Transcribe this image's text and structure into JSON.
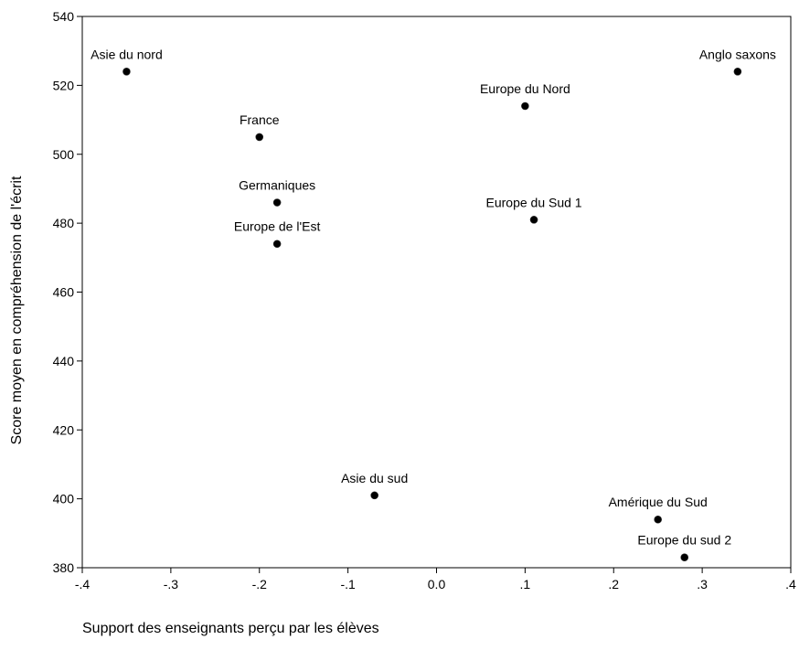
{
  "chart_data": {
    "type": "scatter",
    "title": "",
    "xlabel": "Support des enseignants perçu par les élèves",
    "ylabel": "Score moyen en compréhension de l'écrit",
    "xlim": [
      -0.4,
      0.4
    ],
    "ylim": [
      380,
      540
    ],
    "x_ticks": [
      {
        "value": -0.4,
        "label": "-.4"
      },
      {
        "value": -0.3,
        "label": "-.3"
      },
      {
        "value": -0.2,
        "label": "-.2"
      },
      {
        "value": -0.1,
        "label": "-.1"
      },
      {
        "value": 0.0,
        "label": "0.0"
      },
      {
        "value": 0.1,
        "label": ".1"
      },
      {
        "value": 0.2,
        "label": ".2"
      },
      {
        "value": 0.3,
        "label": ".3"
      },
      {
        "value": 0.4,
        "label": ".4"
      }
    ],
    "y_ticks": [
      {
        "value": 380,
        "label": "380"
      },
      {
        "value": 400,
        "label": "400"
      },
      {
        "value": 420,
        "label": "420"
      },
      {
        "value": 440,
        "label": "440"
      },
      {
        "value": 460,
        "label": "460"
      },
      {
        "value": 480,
        "label": "480"
      },
      {
        "value": 500,
        "label": "500"
      },
      {
        "value": 520,
        "label": "520"
      },
      {
        "value": 540,
        "label": "540"
      }
    ],
    "grid": false,
    "marker_color": "#000000",
    "points": [
      {
        "label": "Asie du nord",
        "x": -0.35,
        "y": 524
      },
      {
        "label": "Anglo saxons",
        "x": 0.34,
        "y": 524
      },
      {
        "label": "Europe du Nord",
        "x": 0.1,
        "y": 514
      },
      {
        "label": "France",
        "x": -0.2,
        "y": 505
      },
      {
        "label": "Germaniques",
        "x": -0.18,
        "y": 486
      },
      {
        "label": "Europe du Sud 1",
        "x": 0.11,
        "y": 481
      },
      {
        "label": "Europe de l'Est",
        "x": -0.18,
        "y": 474
      },
      {
        "label": "Asie du sud",
        "x": -0.07,
        "y": 401
      },
      {
        "label": "Amérique du Sud",
        "x": 0.25,
        "y": 394
      },
      {
        "label": "Europe du sud 2",
        "x": 0.28,
        "y": 383
      }
    ]
  }
}
